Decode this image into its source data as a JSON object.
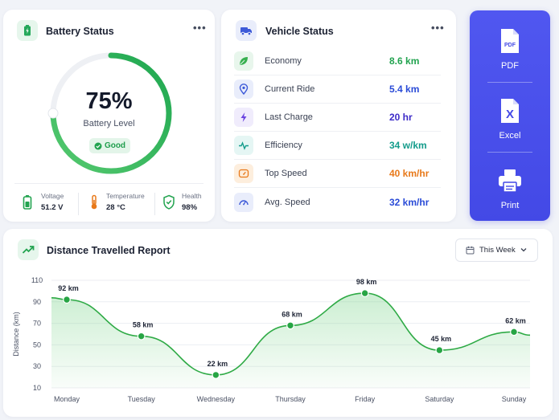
{
  "battery": {
    "title": "Battery Status",
    "menu": "•••",
    "percent_text": "75%",
    "percent_value": 75,
    "level_label": "Battery Level",
    "status": "Good",
    "stats": [
      {
        "label": "Voltage",
        "value": "51.2 V",
        "icon": "battery-icon"
      },
      {
        "label": "Temperature",
        "value": "28 °C",
        "icon": "thermometer-icon"
      },
      {
        "label": "Health",
        "value": "98%",
        "icon": "shield-check-icon"
      }
    ]
  },
  "vehicle": {
    "title": "Vehicle Status",
    "menu": "•••",
    "rows": [
      {
        "label": "Economy",
        "value": "8.6 km",
        "color": "#22a34f",
        "icon": "leaf-icon"
      },
      {
        "label": "Current Ride",
        "value": "5.4 km",
        "color": "#2a4bd7",
        "icon": "location-pin-icon"
      },
      {
        "label": "Last Charge",
        "value": "20 hr",
        "color": "#3d2bc8",
        "icon": "lightning-icon"
      },
      {
        "label": "Efficiency",
        "value": "34 w/km",
        "color": "#159c8c",
        "icon": "pulse-icon"
      },
      {
        "label": "Top Speed",
        "value": "40 km/hr",
        "color": "#e8791a",
        "icon": "speedometer-icon"
      },
      {
        "label": "Avg. Speed",
        "value": "32 km/hr",
        "color": "#2a4bd7",
        "icon": "gauge-icon"
      }
    ]
  },
  "export": {
    "items": [
      {
        "label": "PDF",
        "icon": "pdf-file-icon",
        "badge": "PDF"
      },
      {
        "label": "Excel",
        "icon": "excel-file-icon",
        "badge": "X"
      },
      {
        "label": "Print",
        "icon": "printer-icon"
      }
    ]
  },
  "distance": {
    "title": "Distance Travelled Report",
    "range_selector": "This Week"
  },
  "chart_data": {
    "type": "area",
    "title": "Distance Travelled Report",
    "ylabel": "Distance (km)",
    "xlabel": "",
    "categories": [
      "Monday",
      "Tuesday",
      "Wednesday",
      "Thursday",
      "Friday",
      "Saturday",
      "Sunday"
    ],
    "values": [
      92,
      58,
      22,
      68,
      98,
      45,
      62
    ],
    "data_labels": [
      "92 km",
      "58 km",
      "22 km",
      "68 km",
      "98 km",
      "45 km",
      "62 km"
    ],
    "yticks": [
      10,
      30,
      50,
      70,
      90,
      110
    ],
    "ylim": [
      10,
      110
    ],
    "grid": true,
    "color": "#2eaa45"
  }
}
